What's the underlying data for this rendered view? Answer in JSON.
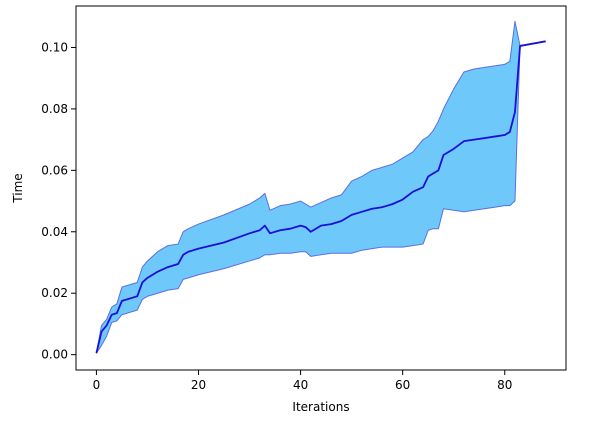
{
  "chart_data": {
    "type": "line",
    "title": "",
    "xlabel": "Iterations",
    "ylabel": "Time",
    "xlim": [
      -4,
      92
    ],
    "ylim": [
      -0.005,
      0.1135
    ],
    "xticks": [
      0,
      20,
      40,
      60,
      80
    ],
    "yticks": [
      0.0,
      0.02,
      0.04,
      0.06,
      0.08,
      0.1
    ],
    "xtick_labels": [
      "0",
      "20",
      "40",
      "60",
      "80"
    ],
    "ytick_labels": [
      "0.00",
      "0.02",
      "0.04",
      "0.06",
      "0.08",
      "0.10"
    ],
    "grid": false,
    "legend": "none",
    "colors": {
      "line": "#1a0fd6",
      "band_fill": "#6ec8fa",
      "band_edge": "#5a6fe0"
    },
    "series": [
      {
        "x": [
          0,
          1,
          2,
          3,
          4,
          5,
          6,
          7,
          8,
          9,
          10,
          12,
          14,
          16,
          17,
          18,
          20,
          25,
          30,
          32,
          33,
          34,
          36,
          38,
          40,
          41,
          42,
          44,
          46,
          48,
          50,
          52,
          54,
          56,
          58,
          60,
          62,
          64,
          65,
          66,
          67,
          68,
          70,
          72,
          74,
          76,
          78,
          80,
          81,
          82,
          83,
          88
        ],
        "values": [
          0.0005,
          0.0075,
          0.0095,
          0.013,
          0.0135,
          0.0175,
          0.018,
          0.0185,
          0.019,
          0.0235,
          0.025,
          0.027,
          0.0285,
          0.0295,
          0.0325,
          0.0335,
          0.0345,
          0.0365,
          0.0395,
          0.0405,
          0.042,
          0.0395,
          0.0405,
          0.041,
          0.042,
          0.0415,
          0.04,
          0.042,
          0.0425,
          0.0435,
          0.0455,
          0.0465,
          0.0475,
          0.048,
          0.049,
          0.0505,
          0.053,
          0.0545,
          0.058,
          0.059,
          0.06,
          0.065,
          0.067,
          0.0695,
          0.07,
          0.0705,
          0.071,
          0.0715,
          0.0725,
          0.079,
          0.1005,
          0.102
        ],
        "lower": [
          0.0005,
          0.003,
          0.006,
          0.0105,
          0.011,
          0.013,
          0.0135,
          0.014,
          0.0145,
          0.018,
          0.019,
          0.02,
          0.021,
          0.0215,
          0.0245,
          0.025,
          0.026,
          0.028,
          0.0305,
          0.0315,
          0.0325,
          0.0325,
          0.033,
          0.033,
          0.0335,
          0.0335,
          0.032,
          0.0325,
          0.033,
          0.033,
          0.033,
          0.034,
          0.0345,
          0.035,
          0.035,
          0.035,
          0.0355,
          0.036,
          0.0405,
          0.041,
          0.041,
          0.0475,
          0.047,
          0.0465,
          0.047,
          0.0475,
          0.048,
          0.0485,
          0.0485,
          0.05,
          0.1005,
          0.102
        ],
        "upper": [
          0.0005,
          0.0095,
          0.0115,
          0.0155,
          0.0165,
          0.022,
          0.0225,
          0.023,
          0.0235,
          0.0285,
          0.0305,
          0.0335,
          0.0355,
          0.036,
          0.04,
          0.041,
          0.0425,
          0.0455,
          0.049,
          0.051,
          0.0525,
          0.047,
          0.0485,
          0.049,
          0.05,
          0.049,
          0.048,
          0.0495,
          0.051,
          0.052,
          0.0565,
          0.058,
          0.06,
          0.061,
          0.062,
          0.064,
          0.066,
          0.07,
          0.071,
          0.073,
          0.076,
          0.08,
          0.0865,
          0.092,
          0.093,
          0.0935,
          0.094,
          0.0945,
          0.0955,
          0.1085,
          0.1005,
          0.102
        ]
      }
    ]
  }
}
